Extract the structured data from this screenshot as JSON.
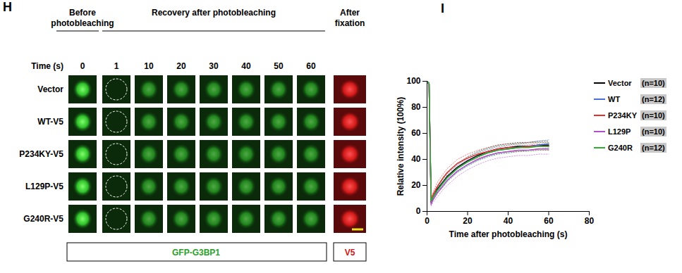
{
  "panel_labels": [
    "H",
    "I"
  ],
  "panel_h": {
    "column_headers": {
      "before": "Before photobleaching",
      "recovery": "Recovery after photobleaching",
      "after": "After fixation"
    },
    "time_label": "Time (s)",
    "times": [
      0,
      1,
      10,
      20,
      30,
      40,
      50,
      60
    ],
    "rows": [
      "Vector",
      "WT-V5",
      "P234KY-V5",
      "L129P-V5",
      "G240R-V5"
    ],
    "channels": {
      "green": "GFP-G3BP1",
      "red": "V5"
    }
  },
  "chart_data": {
    "type": "line",
    "x_label": "Time after photobleaching (s)",
    "y_label": "Relative intensity (100%)",
    "xlim": [
      0,
      80
    ],
    "xticks": [
      0,
      20,
      40,
      60,
      80
    ],
    "ylim": [
      0,
      100
    ],
    "yticks": [
      0,
      20,
      40,
      60,
      80,
      100
    ],
    "legend": "right",
    "x": [
      0,
      1,
      2,
      3,
      5,
      8,
      10,
      15,
      20,
      25,
      30,
      35,
      40,
      45,
      50,
      55,
      60
    ],
    "series": [
      {
        "name": "Vector",
        "n_label": "(n=10)",
        "color": "#000000",
        "values": [
          100,
          98,
          7,
          11,
          17,
          23,
          27,
          34,
          39,
          43,
          46,
          48,
          49,
          50,
          50,
          51,
          51
        ],
        "errors": [
          0,
          1,
          2,
          2,
          2,
          3,
          3,
          3,
          3,
          3,
          3,
          3,
          3,
          3,
          3,
          3,
          3
        ]
      },
      {
        "name": "WT",
        "n_label": "(n=12)",
        "color": "#4a6fd8",
        "values": [
          100,
          98,
          8,
          11,
          16,
          22,
          26,
          33,
          38,
          42,
          45,
          47,
          48,
          49,
          50,
          51,
          52
        ],
        "errors": [
          0,
          1,
          2,
          2,
          2,
          3,
          3,
          3,
          3,
          3,
          3,
          3,
          3,
          3,
          3,
          3,
          3
        ]
      },
      {
        "name": "P234KY",
        "n_label": "(n=10)",
        "color": "#e03030",
        "values": [
          100,
          98,
          8,
          13,
          19,
          26,
          30,
          37,
          41,
          44,
          46,
          48,
          49,
          49,
          50,
          50,
          50
        ],
        "errors": [
          0,
          1,
          2,
          2,
          3,
          3,
          3,
          3,
          3,
          3,
          3,
          3,
          3,
          3,
          3,
          3,
          3
        ]
      },
      {
        "name": "L129P",
        "n_label": "(n=10)",
        "color": "#b050c8",
        "values": [
          100,
          98,
          6,
          9,
          14,
          20,
          24,
          31,
          36,
          40,
          43,
          45,
          46,
          47,
          47,
          48,
          48
        ],
        "errors": [
          0,
          1,
          2,
          2,
          3,
          3,
          4,
          4,
          4,
          4,
          4,
          4,
          4,
          4,
          4,
          4,
          4
        ]
      },
      {
        "name": "G240R",
        "n_label": "(n=12)",
        "color": "#30b030",
        "values": [
          100,
          98,
          8,
          11,
          16,
          22,
          26,
          33,
          38,
          42,
          45,
          47,
          48,
          49,
          49,
          50,
          50
        ],
        "errors": [
          0,
          1,
          2,
          2,
          2,
          3,
          3,
          3,
          3,
          3,
          3,
          3,
          3,
          3,
          3,
          3,
          3
        ]
      }
    ]
  }
}
